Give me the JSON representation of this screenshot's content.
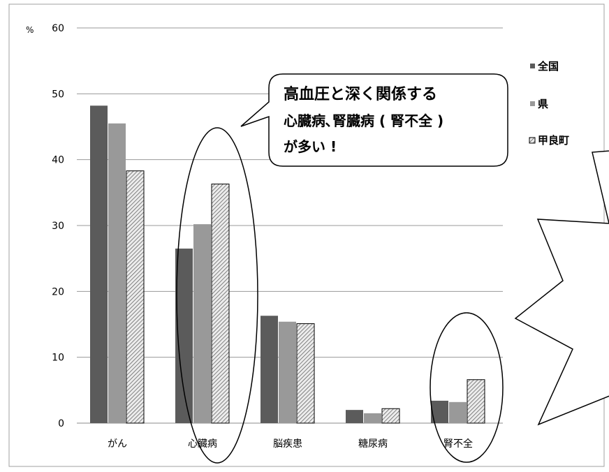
{
  "chart_data": {
    "type": "bar",
    "ylabel": "%",
    "ylim": [
      0,
      60
    ],
    "yticks": [
      0,
      10,
      20,
      30,
      40,
      50,
      60
    ],
    "grid": true,
    "categories": [
      "がん",
      "心臓病",
      "脳疾患",
      "糖尿病",
      "腎不全"
    ],
    "series": [
      {
        "name": "全国",
        "values": [
          48.2,
          26.5,
          16.3,
          2.0,
          3.4
        ]
      },
      {
        "name": "県",
        "values": [
          45.5,
          30.2,
          15.4,
          1.5,
          3.2
        ]
      },
      {
        "name": "甲良町",
        "values": [
          38.3,
          36.3,
          15.1,
          2.2,
          6.6
        ]
      }
    ],
    "legend_position": "right",
    "annotation": [
      "高血圧と深く関係する",
      "心臓病､腎臓病 ( 腎不全 )",
      "が多い !"
    ],
    "colors": {
      "series": [
        "#5b5b5b",
        "#999999",
        "#e6e6e6"
      ],
      "grid": "#9a9a9a",
      "axis": "#888888",
      "text": "#000000"
    }
  }
}
